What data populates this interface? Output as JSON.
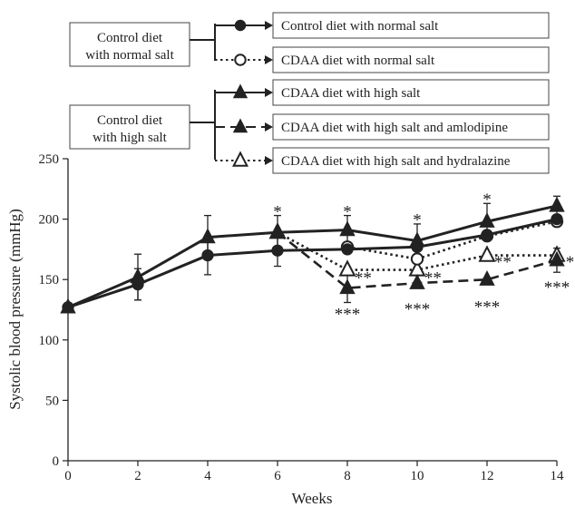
{
  "chart_data": {
    "type": "line",
    "xlabel": "Weeks",
    "ylabel": "Systolic blood pressure (mmHg)",
    "xlim": [
      0,
      14
    ],
    "ylim": [
      0,
      250
    ],
    "x_ticks": [
      0,
      2,
      4,
      6,
      8,
      10,
      12,
      14
    ],
    "y_ticks": [
      0,
      50,
      100,
      150,
      200,
      250
    ],
    "x_tick_labels": [
      "0",
      "2",
      "4",
      "6",
      "8",
      "10",
      "12",
      "14"
    ],
    "y_tick_labels": [
      "0",
      "50",
      "100",
      "150",
      "200",
      "250"
    ],
    "grid": false,
    "legend": {
      "placement": "top",
      "groups": [
        {
          "label": "Control diet\nwith normal salt",
          "entries": [
            0,
            1
          ]
        },
        {
          "label": "Control diet\nwith high salt",
          "entries": [
            2,
            3,
            4
          ]
        }
      ]
    },
    "series": [
      {
        "name": "Control diet with normal salt",
        "marker": "filled-circle",
        "line": "solid",
        "x": [
          0,
          2,
          4,
          6,
          8,
          10,
          12,
          14
        ],
        "y": [
          127,
          146,
          170,
          174,
          175,
          177,
          187,
          200
        ],
        "err": [
          0,
          13,
          16,
          13,
          0,
          0,
          0,
          0
        ]
      },
      {
        "name": "CDAA diet with normal salt",
        "marker": "open-circle",
        "line": "dotted",
        "x": [
          8,
          10,
          12,
          14
        ],
        "y": [
          177,
          167,
          186,
          198
        ],
        "err": [
          0,
          0,
          0,
          0
        ]
      },
      {
        "name": "CDAA diet with high salt",
        "marker": "filled-triangle",
        "line": "solid",
        "x": [
          0,
          2,
          4,
          6,
          8,
          10,
          12,
          14
        ],
        "y": [
          127,
          152,
          185,
          189,
          191,
          182,
          198,
          211
        ],
        "err": [
          0,
          19,
          18,
          14,
          12,
          14,
          15,
          8
        ]
      },
      {
        "name": "CDAA diet with high salt and amlodipine",
        "marker": "filled-triangle",
        "line": "dashed",
        "x": [
          6,
          8,
          10,
          12,
          14
        ],
        "y": [
          189,
          143,
          147,
          150,
          166
        ],
        "err": [
          0,
          12,
          0,
          0,
          10
        ]
      },
      {
        "name": "CDAA diet with high salt and hydralazine",
        "marker": "open-triangle",
        "line": "dotted",
        "x": [
          6,
          8,
          10,
          12,
          14
        ],
        "y": [
          189,
          158,
          158,
          170,
          170
        ],
        "err": [
          0,
          0,
          0,
          0,
          0
        ]
      }
    ],
    "annotations": [
      {
        "text": "*",
        "x": 6,
        "y": 207
      },
      {
        "text": "*",
        "x": 8,
        "y": 207
      },
      {
        "text": "*",
        "x": 10,
        "y": 200
      },
      {
        "text": "*",
        "x": 12,
        "y": 217
      },
      {
        "text": "**",
        "x": 8.45,
        "y": 152
      },
      {
        "text": "**",
        "x": 10.45,
        "y": 152
      },
      {
        "text": "**",
        "x": 12.45,
        "y": 165
      },
      {
        "text": "**",
        "x": 14.5,
        "y": 165
      },
      {
        "text": "***",
        "x": 8,
        "y": 122
      },
      {
        "text": "***",
        "x": 10,
        "y": 126
      },
      {
        "text": "***",
        "x": 12,
        "y": 128
      },
      {
        "text": "***",
        "x": 14,
        "y": 144
      }
    ]
  }
}
